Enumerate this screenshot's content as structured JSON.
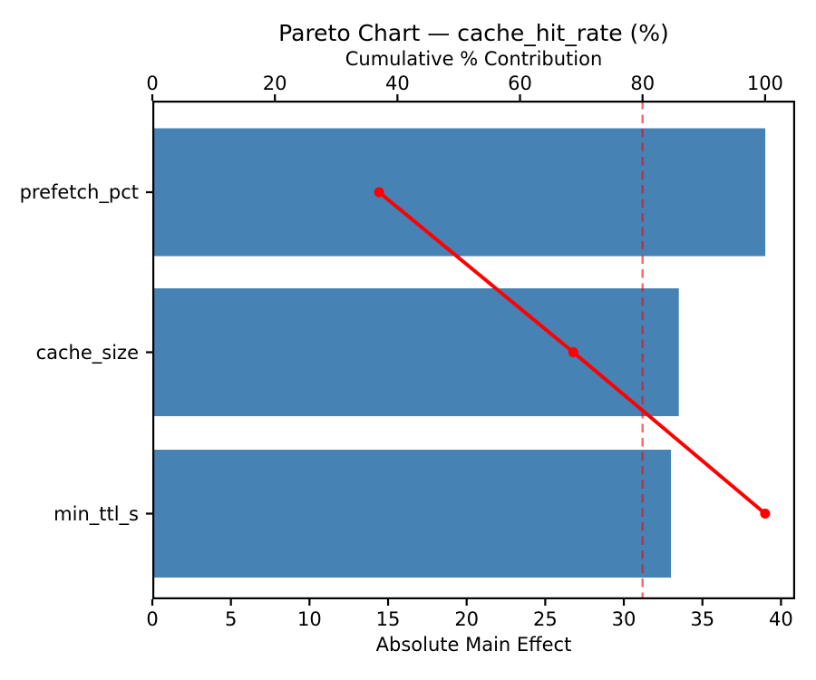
{
  "title": "Pareto Chart — cache_hit_rate (%)",
  "axes": {
    "top": {
      "label": "Cumulative % Contribution",
      "tick_values": [
        0,
        20,
        40,
        60,
        80,
        100
      ],
      "tick_labels": [
        "0",
        "20",
        "40",
        "60",
        "80",
        "100"
      ],
      "max": 104.9
    },
    "bottom": {
      "label": "Absolute Main Effect",
      "tick_values": [
        0,
        5,
        10,
        15,
        20,
        25,
        30,
        35,
        40
      ],
      "tick_labels": [
        "0",
        "5",
        "10",
        "15",
        "20",
        "25",
        "30",
        "35",
        "40"
      ],
      "max": 40.9
    },
    "left": {
      "tick_labels": [
        "prefetch_pct",
        "cache_size",
        "min_ttl_s"
      ]
    }
  },
  "chart_data": {
    "type": "bar",
    "subtype": "pareto-horizontal",
    "title": "Pareto Chart — cache_hit_rate (%)",
    "categories": [
      "prefetch_pct",
      "cache_size",
      "min_ttl_s"
    ],
    "series": [
      {
        "name": "Absolute Main Effect",
        "type": "bar",
        "axis": "bottom",
        "values": [
          39.0,
          33.5,
          33.0
        ]
      },
      {
        "name": "Cumulative % Contribution",
        "type": "line",
        "axis": "top",
        "values": [
          37.0,
          68.7,
          100.0
        ]
      }
    ],
    "threshold_line": {
      "value": 80,
      "axis": "top",
      "style": "dashed"
    },
    "xlabel": "Absolute Main Effect",
    "xlabel_top": "Cumulative % Contribution",
    "ylabel": "",
    "xlim_bottom": [
      0,
      40.9
    ],
    "xlim_top": [
      0,
      104.9
    ],
    "grid": false,
    "legend": "none"
  },
  "colors": {
    "bar": "#4682b4",
    "line": "#ff0000",
    "threshold": "rgba(255,0,0,0.6)",
    "spine": "#000000",
    "text": "#000000"
  }
}
